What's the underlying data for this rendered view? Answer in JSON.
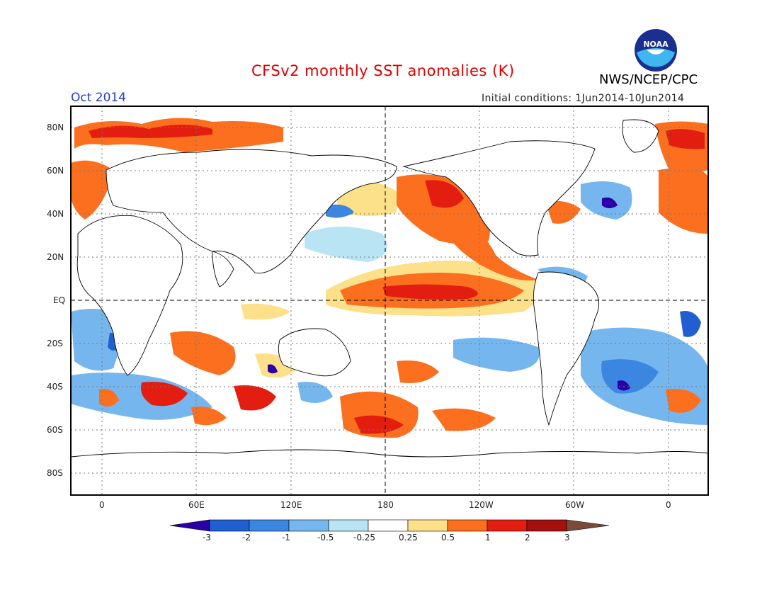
{
  "header": {
    "title": "CFSv2 monthly SST anomalies (K)",
    "valid_month": "Oct 2014",
    "initial_conditions": "Initial conditions: 1Jun2014-10Jun2014",
    "agency": "NWS/NCEP/CPC",
    "logo_text": "NOAA"
  },
  "axes": {
    "lat_labels": [
      "80N",
      "60N",
      "40N",
      "20N",
      "EQ",
      "20S",
      "40S",
      "60S",
      "80S"
    ],
    "lon_labels": [
      "0",
      "60E",
      "120E",
      "180",
      "120W",
      "60W",
      "0"
    ]
  },
  "colorbar": {
    "labels": [
      "-3",
      "-2",
      "-1",
      "-0.5",
      "-0.25",
      "0.25",
      "0.5",
      "1",
      "2",
      "3"
    ],
    "colors": [
      "#2a00a8",
      "#1f5fd0",
      "#3a86e0",
      "#76b6ef",
      "#b8e4f4",
      "#ffffff",
      "#fde08a",
      "#fb6f1e",
      "#e31e10",
      "#a50f0f",
      "#7a4a3a"
    ]
  },
  "colors": {
    "title": "#e00000",
    "month": "#1f3fd0",
    "frame": "#000000"
  }
}
